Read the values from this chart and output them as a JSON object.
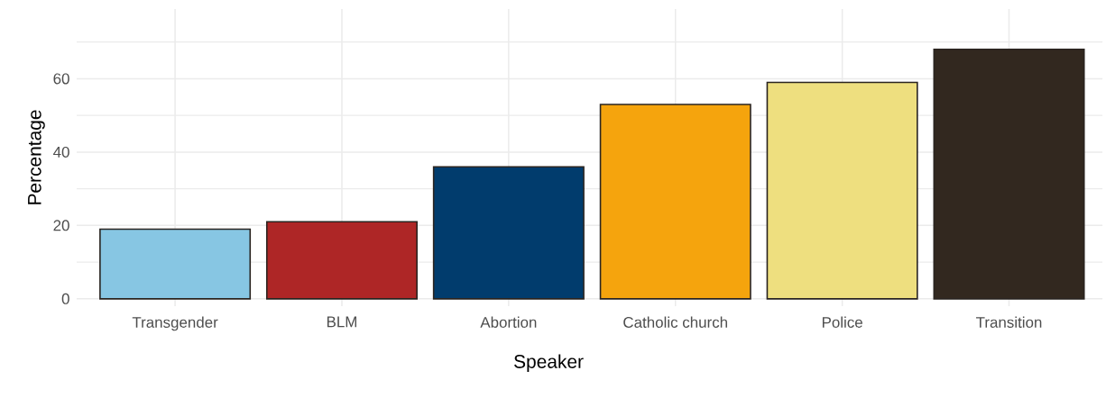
{
  "chart_data": {
    "type": "bar",
    "xlabel": "Speaker",
    "ylabel": "Percentage",
    "categories": [
      "Transgender",
      "BLM",
      "Abortion",
      "Catholic church",
      "Police",
      "Transition"
    ],
    "values": [
      19,
      21,
      36,
      53,
      59,
      68
    ],
    "colors": [
      "#87c6e3",
      "#ae2626",
      "#013c6d",
      "#f5a40d",
      "#eedf7f",
      "#32281f"
    ],
    "ylim": [
      -2,
      79
    ],
    "yticks": [
      0,
      {
        "value": 10,
        "label": null
      },
      20,
      {
        "value": 30,
        "label": null
      },
      40,
      {
        "value": 50,
        "label": null
      },
      60,
      {
        "value": 70,
        "label": null
      }
    ],
    "grid": true
  }
}
